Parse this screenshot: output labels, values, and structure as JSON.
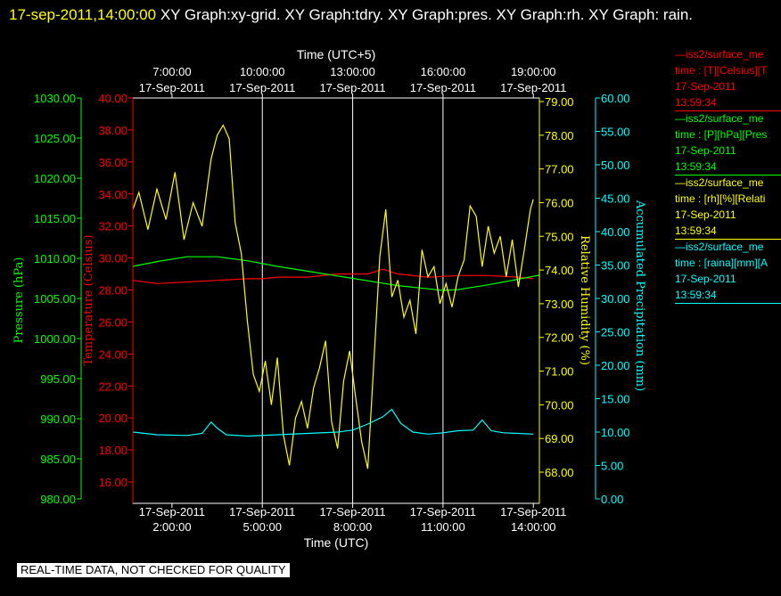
{
  "title": {
    "timestamp": "17-sep-2011,14:00:00",
    "text": " XY Graph:xy-grid.  XY Graph:tdry.  XY Graph:pres.  XY Graph:rh.  XY Graph: rain."
  },
  "axes": {
    "top_title": "Time (UTC+5)",
    "bottom_title": "Time (UTC)",
    "top_ticks": [
      {
        "time": "7:00:00",
        "date": "17-Sep-2011"
      },
      {
        "time": "10:00:00",
        "date": "17-Sep-2011"
      },
      {
        "time": "13:00:00",
        "date": "17-Sep-2011"
      },
      {
        "time": "16:00:00",
        "date": "17-Sep-2011"
      },
      {
        "time": "19:00:00",
        "date": "17-Sep-2011"
      }
    ],
    "bottom_ticks": [
      {
        "date": "17-Sep-2011",
        "time": "2:00:00"
      },
      {
        "date": "17-Sep-2011",
        "time": "5:00:00"
      },
      {
        "date": "17-Sep-2011",
        "time": "8:00:00"
      },
      {
        "date": "17-Sep-2011",
        "time": "11:00:00"
      },
      {
        "date": "17-Sep-2011",
        "time": "14:00:00"
      }
    ],
    "pressure": {
      "label": "Pressure (hPa)",
      "color": "#00ff00",
      "ticks": [
        "1030.00",
        "1025.00",
        "1020.00",
        "1015.00",
        "1010.00",
        "1005.00",
        "1000.00",
        "995.00",
        "990.00",
        "985.00",
        "980.00"
      ]
    },
    "temperature": {
      "label": "Temperature (Celsius)",
      "color": "#ff0000",
      "ticks": [
        "40.00",
        "38.00",
        "36.00",
        "34.00",
        "32.00",
        "30.00",
        "28.00",
        "26.00",
        "24.00",
        "22.00",
        "20.00",
        "18.00",
        "16.00"
      ]
    },
    "humidity": {
      "label": "Relative Humidity (%)",
      "color": "#ffff00",
      "ticks": [
        "79.00",
        "78.00",
        "77.00",
        "76.00",
        "75.00",
        "74.00",
        "73.00",
        "72.00",
        "71.00",
        "70.00",
        "69.00",
        "68.00"
      ]
    },
    "precip": {
      "label": "Accumulated Precipitation (mm)",
      "color": "#00ffff",
      "ticks": [
        "60.00",
        "55.00",
        "50.00",
        "45.00",
        "40.00",
        "35.00",
        "30.00",
        "25.00",
        "20.00",
        "15.00",
        "10.00",
        "5.00",
        "0.00"
      ]
    }
  },
  "legend": [
    {
      "line1": "—iss2/surface_me",
      "line2": "time : [T][Celsius][T",
      "date": "17-Sep-2011",
      "time": "13:59:34",
      "color": "#ff0000"
    },
    {
      "line1": "—iss2/surface_me",
      "line2": "time : [P][hPa][Pres",
      "date": "17-Sep-2011",
      "time": "13:59:34",
      "color": "#00ff00"
    },
    {
      "line1": "—iss2/surface_me",
      "line2": "time : [rh][%][Relati",
      "date": "17-Sep-2011",
      "time": "13:59:34",
      "color": "#ffff00"
    },
    {
      "line1": "—iss2/surface_me",
      "line2": "time : [raina][mm][A",
      "date": "17-Sep-2011",
      "time": "13:59:34",
      "color": "#00ffff"
    }
  ],
  "disclaimer": "REAL-TIME DATA, NOT CHECKED FOR QUALITY",
  "chart_data": {
    "type": "line",
    "x_unit": "hours UTC, 17-Sep-2011",
    "xlim": [
      0.7,
      14.2
    ],
    "series": [
      {
        "name": "tdry",
        "axis": "temperature",
        "color": "#ff0000",
        "ylim": [
          15.0,
          40.0
        ],
        "x": [
          0.7,
          1.5,
          2.5,
          3.5,
          4.5,
          5.0,
          5.5,
          6.5,
          7.5,
          8.5,
          9.0,
          9.5,
          10.5,
          11.5,
          12.5,
          13.5,
          14.0
        ],
        "y": [
          28.6,
          28.4,
          28.5,
          28.6,
          28.7,
          28.7,
          28.8,
          28.8,
          29.0,
          29.0,
          29.3,
          29.0,
          28.8,
          28.9,
          28.9,
          28.8,
          28.7
        ]
      },
      {
        "name": "pres",
        "axis": "pressure",
        "color": "#00ff00",
        "ylim": [
          980.0,
          1030.0
        ],
        "x": [
          0.7,
          1.5,
          2.5,
          3.5,
          4.5,
          5.5,
          6.5,
          7.5,
          8.5,
          9.5,
          10.5,
          11.0,
          11.5,
          12.5,
          13.5,
          14.2
        ],
        "y": [
          1009.0,
          1009.6,
          1010.2,
          1010.2,
          1009.7,
          1009.0,
          1008.4,
          1007.8,
          1007.2,
          1006.6,
          1006.2,
          1006.0,
          1006.1,
          1006.7,
          1007.4,
          1007.9
        ]
      },
      {
        "name": "rh",
        "axis": "humidity",
        "color": "#ffff00",
        "ylim": [
          67.7,
          79.0
        ],
        "x": [
          0.7,
          0.9,
          1.2,
          1.5,
          1.8,
          2.1,
          2.4,
          2.7,
          3.0,
          3.3,
          3.5,
          3.7,
          3.9,
          4.1,
          4.3,
          4.5,
          4.7,
          4.9,
          5.1,
          5.3,
          5.5,
          5.7,
          5.9,
          6.1,
          6.3,
          6.5,
          6.7,
          6.9,
          7.1,
          7.3,
          7.5,
          7.7,
          7.9,
          8.1,
          8.3,
          8.5,
          8.7,
          8.9,
          9.1,
          9.3,
          9.5,
          9.7,
          9.9,
          10.1,
          10.3,
          10.5,
          10.7,
          10.9,
          11.1,
          11.3,
          11.5,
          11.7,
          11.9,
          12.1,
          12.3,
          12.5,
          12.7,
          12.9,
          13.1,
          13.3,
          13.5,
          13.7,
          13.9,
          14.0
        ],
        "y": [
          75.8,
          76.3,
          75.2,
          76.4,
          75.5,
          76.9,
          74.9,
          76.0,
          75.3,
          77.3,
          78.0,
          78.3,
          77.9,
          75.4,
          74.5,
          72.5,
          70.9,
          70.4,
          71.3,
          70.0,
          71.4,
          69.1,
          68.2,
          69.6,
          70.1,
          69.3,
          70.5,
          71.1,
          71.9,
          69.5,
          68.7,
          70.7,
          71.6,
          70.2,
          68.9,
          68.1,
          71.2,
          74.4,
          75.8,
          73.2,
          73.7,
          72.6,
          73.1,
          72.1,
          74.6,
          73.8,
          74.1,
          73.0,
          73.6,
          72.9,
          73.8,
          74.3,
          75.9,
          75.6,
          74.1,
          75.3,
          74.5,
          75.0,
          73.8,
          74.9,
          73.5,
          74.6,
          75.8,
          76.1
        ]
      },
      {
        "name": "rain",
        "axis": "precip",
        "color": "#00ffff",
        "ylim": [
          0.0,
          60.0
        ],
        "x": [
          0.7,
          1.5,
          2.5,
          3.0,
          3.3,
          3.5,
          3.8,
          4.5,
          5.5,
          6.5,
          7.5,
          8.0,
          8.5,
          9.0,
          9.3,
          9.6,
          10.0,
          10.5,
          11.0,
          11.5,
          12.0,
          12.3,
          12.6,
          13.0,
          13.5,
          14.0
        ],
        "y": [
          10.0,
          9.6,
          9.5,
          9.8,
          11.5,
          10.6,
          9.6,
          9.4,
          9.6,
          9.8,
          10.0,
          10.3,
          11.2,
          12.3,
          13.4,
          11.3,
          10.0,
          9.7,
          9.9,
          10.2,
          10.3,
          11.8,
          10.2,
          9.9,
          9.8,
          9.7
        ]
      }
    ]
  }
}
